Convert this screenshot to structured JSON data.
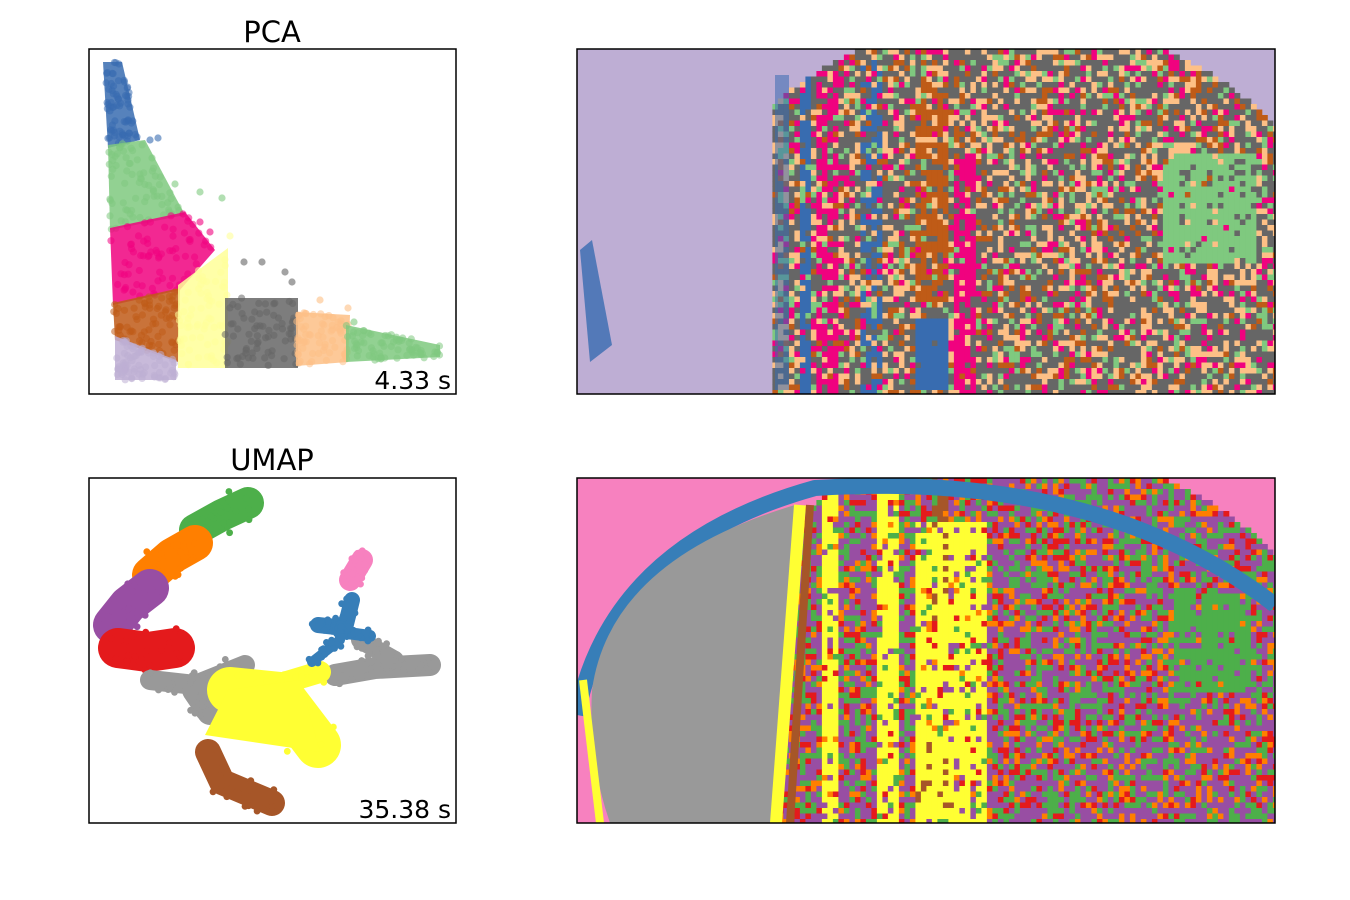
{
  "chart_data": [
    {
      "type": "scatter",
      "title": "PCA",
      "annotation": "4.33 s",
      "grid": false,
      "ticks": false,
      "palette": "Accent",
      "clusters": [
        {
          "id": 0,
          "color": "#386cb0"
        },
        {
          "id": 1,
          "color": "#7fc97f"
        },
        {
          "id": 2,
          "color": "#f0027f"
        },
        {
          "id": 3,
          "color": "#ffff99"
        },
        {
          "id": 4,
          "color": "#666666"
        },
        {
          "id": 5,
          "color": "#fdc086"
        },
        {
          "id": 6,
          "color": "#bf5b17"
        },
        {
          "id": 7,
          "color": "#beaed4"
        }
      ]
    },
    {
      "type": "heatmap",
      "description_role": "spatial cluster map (PCA clustering)",
      "ticks": false,
      "background_color": "#beaed4",
      "colors": [
        "#666666",
        "#fdc086",
        "#bf5b17",
        "#f0027f",
        "#7fc97f",
        "#386cb0"
      ]
    },
    {
      "type": "scatter",
      "title": "UMAP",
      "annotation": "35.38 s",
      "grid": false,
      "ticks": false,
      "palette": "Set1",
      "clusters": [
        {
          "id": 0,
          "color": "#4daf4a"
        },
        {
          "id": 1,
          "color": "#ff7f00"
        },
        {
          "id": 2,
          "color": "#984ea3"
        },
        {
          "id": 3,
          "color": "#e41a1c"
        },
        {
          "id": 4,
          "color": "#999999"
        },
        {
          "id": 5,
          "color": "#ffff33"
        },
        {
          "id": 6,
          "color": "#a65628"
        },
        {
          "id": 7,
          "color": "#377eb8"
        },
        {
          "id": 8,
          "color": "#f781bf"
        }
      ]
    },
    {
      "type": "heatmap",
      "description_role": "spatial cluster map (UMAP clustering)",
      "ticks": false,
      "background_color": "#f781bf",
      "colors": [
        "#984ea3",
        "#4daf4a",
        "#e41a1c",
        "#ff7f00",
        "#a65628"
      ]
    }
  ]
}
